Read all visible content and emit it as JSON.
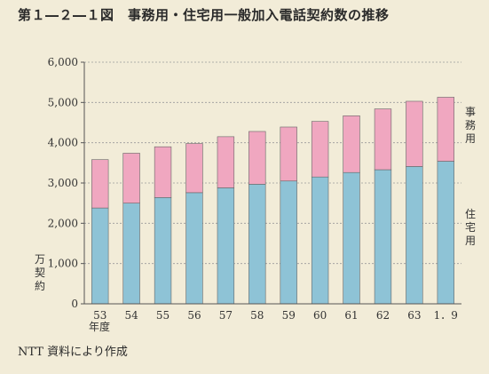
{
  "title": "第１―２―１図　事務用・住宅用一般加入電話契約数の推移",
  "source_note": "NTT 資料により作成",
  "chart_data": {
    "type": "bar",
    "stacked": true,
    "categories": [
      "53",
      "54",
      "55",
      "56",
      "57",
      "58",
      "59",
      "60",
      "61",
      "62",
      "63",
      "1．9"
    ],
    "x_unit": "年度",
    "y_unit": "万契約",
    "ylim": [
      0,
      6000
    ],
    "yticks": [
      "0",
      "1,000",
      "2,000",
      "3,000",
      "4,000",
      "5,000",
      "6,000"
    ],
    "series": [
      {
        "name": "住宅用",
        "color": "#8ec3d6",
        "values": [
          2380,
          2500,
          2640,
          2760,
          2880,
          2970,
          3050,
          3150,
          3260,
          3330,
          3410,
          3540
        ]
      },
      {
        "name": "事務用",
        "color": "#f0a7c0",
        "values": [
          1200,
          1240,
          1260,
          1220,
          1270,
          1310,
          1340,
          1380,
          1410,
          1510,
          1620,
          1590
        ]
      }
    ]
  }
}
